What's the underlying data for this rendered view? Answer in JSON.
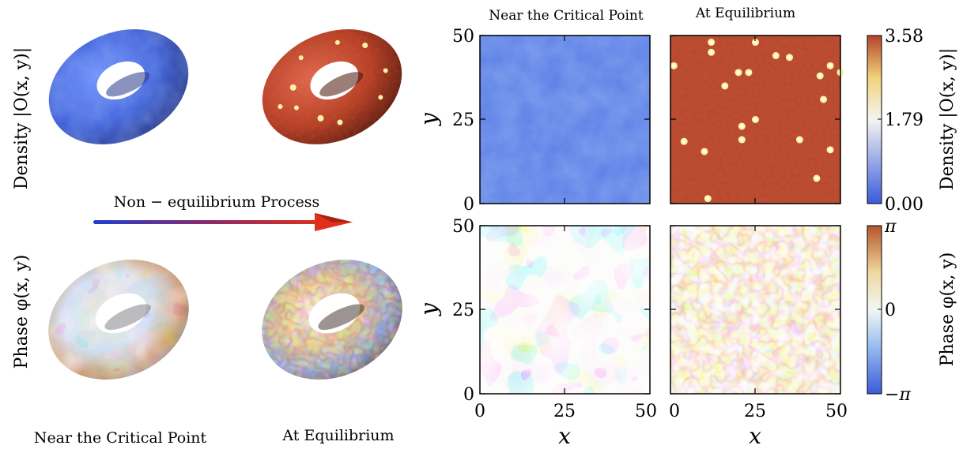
{
  "figure": {
    "left_row_labels": {
      "density": "Density |O(x, y)|",
      "phase": "Phase φ(x, y)"
    },
    "process_arrow_label": "Non − equilibrium Process",
    "left_column_labels": {
      "critical": "Near the Critical Point",
      "equilibrium": "At Equilibrium"
    },
    "panel_titles": {
      "critical": "Near the Critical Point",
      "equilibrium": "At Equilibrium"
    },
    "axes": {
      "xlabel": "x",
      "ylabel": "y",
      "x_ticks": [
        "0",
        "25",
        "50"
      ],
      "y_ticks": [
        "0",
        "25",
        "50"
      ],
      "range": [
        0,
        50
      ]
    },
    "colorbars": {
      "density": {
        "label": "Density |O(x, y)|",
        "ticks": [
          "3.58",
          "1.79",
          "0.00"
        ],
        "max": 3.58,
        "min": 0.0
      },
      "phase": {
        "label": "Phase φ(x, y)",
        "ticks": [
          "π",
          "0",
          "−π"
        ]
      }
    },
    "colors": {
      "low": "#3b5bdb",
      "mid": "#f2f0e6",
      "high": "#b4442a",
      "vortex": "#fff2a0"
    },
    "vortex_positions_equilibrium": [
      [
        1,
        41
      ],
      [
        12,
        48
      ],
      [
        12,
        45
      ],
      [
        25,
        48
      ],
      [
        31,
        44
      ],
      [
        35,
        43.5
      ],
      [
        20,
        39
      ],
      [
        23,
        39
      ],
      [
        16,
        35
      ],
      [
        44,
        38
      ],
      [
        47,
        41
      ],
      [
        50,
        39
      ],
      [
        45,
        31
      ],
      [
        25,
        25
      ],
      [
        21,
        23
      ],
      [
        21,
        19
      ],
      [
        38,
        19
      ],
      [
        4,
        18.5
      ],
      [
        10,
        15.5
      ],
      [
        47,
        16
      ],
      [
        43,
        7.5
      ],
      [
        11,
        1.5
      ]
    ]
  }
}
